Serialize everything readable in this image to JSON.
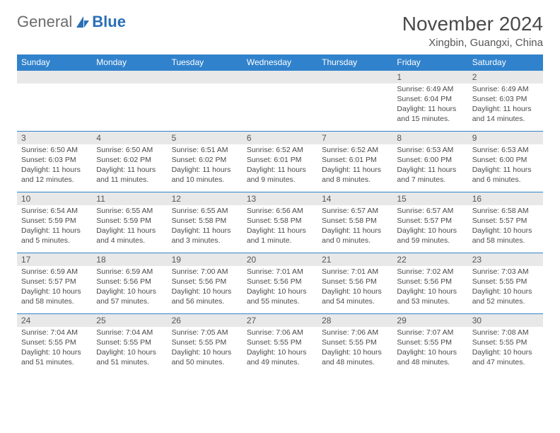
{
  "logo": {
    "text1": "General",
    "text2": "Blue"
  },
  "title": "November 2024",
  "location": "Xingbin, Guangxi, China",
  "colors": {
    "header_bg": "#3182cc",
    "header_fg": "#ffffff",
    "daynum_bg": "#e8e8e8",
    "border": "#3182cc",
    "logo_gray": "#6b6b6b",
    "logo_blue": "#2a6fb5"
  },
  "weekdays": [
    "Sunday",
    "Monday",
    "Tuesday",
    "Wednesday",
    "Thursday",
    "Friday",
    "Saturday"
  ],
  "weeks": [
    [
      null,
      null,
      null,
      null,
      null,
      {
        "d": "1",
        "sr": "6:49 AM",
        "ss": "6:04 PM",
        "dl": "11 hours and 15 minutes."
      },
      {
        "d": "2",
        "sr": "6:49 AM",
        "ss": "6:03 PM",
        "dl": "11 hours and 14 minutes."
      }
    ],
    [
      {
        "d": "3",
        "sr": "6:50 AM",
        "ss": "6:03 PM",
        "dl": "11 hours and 12 minutes."
      },
      {
        "d": "4",
        "sr": "6:50 AM",
        "ss": "6:02 PM",
        "dl": "11 hours and 11 minutes."
      },
      {
        "d": "5",
        "sr": "6:51 AM",
        "ss": "6:02 PM",
        "dl": "11 hours and 10 minutes."
      },
      {
        "d": "6",
        "sr": "6:52 AM",
        "ss": "6:01 PM",
        "dl": "11 hours and 9 minutes."
      },
      {
        "d": "7",
        "sr": "6:52 AM",
        "ss": "6:01 PM",
        "dl": "11 hours and 8 minutes."
      },
      {
        "d": "8",
        "sr": "6:53 AM",
        "ss": "6:00 PM",
        "dl": "11 hours and 7 minutes."
      },
      {
        "d": "9",
        "sr": "6:53 AM",
        "ss": "6:00 PM",
        "dl": "11 hours and 6 minutes."
      }
    ],
    [
      {
        "d": "10",
        "sr": "6:54 AM",
        "ss": "5:59 PM",
        "dl": "11 hours and 5 minutes."
      },
      {
        "d": "11",
        "sr": "6:55 AM",
        "ss": "5:59 PM",
        "dl": "11 hours and 4 minutes."
      },
      {
        "d": "12",
        "sr": "6:55 AM",
        "ss": "5:58 PM",
        "dl": "11 hours and 3 minutes."
      },
      {
        "d": "13",
        "sr": "6:56 AM",
        "ss": "5:58 PM",
        "dl": "11 hours and 1 minute."
      },
      {
        "d": "14",
        "sr": "6:57 AM",
        "ss": "5:58 PM",
        "dl": "11 hours and 0 minutes."
      },
      {
        "d": "15",
        "sr": "6:57 AM",
        "ss": "5:57 PM",
        "dl": "10 hours and 59 minutes."
      },
      {
        "d": "16",
        "sr": "6:58 AM",
        "ss": "5:57 PM",
        "dl": "10 hours and 58 minutes."
      }
    ],
    [
      {
        "d": "17",
        "sr": "6:59 AM",
        "ss": "5:57 PM",
        "dl": "10 hours and 58 minutes."
      },
      {
        "d": "18",
        "sr": "6:59 AM",
        "ss": "5:56 PM",
        "dl": "10 hours and 57 minutes."
      },
      {
        "d": "19",
        "sr": "7:00 AM",
        "ss": "5:56 PM",
        "dl": "10 hours and 56 minutes."
      },
      {
        "d": "20",
        "sr": "7:01 AM",
        "ss": "5:56 PM",
        "dl": "10 hours and 55 minutes."
      },
      {
        "d": "21",
        "sr": "7:01 AM",
        "ss": "5:56 PM",
        "dl": "10 hours and 54 minutes."
      },
      {
        "d": "22",
        "sr": "7:02 AM",
        "ss": "5:56 PM",
        "dl": "10 hours and 53 minutes."
      },
      {
        "d": "23",
        "sr": "7:03 AM",
        "ss": "5:55 PM",
        "dl": "10 hours and 52 minutes."
      }
    ],
    [
      {
        "d": "24",
        "sr": "7:04 AM",
        "ss": "5:55 PM",
        "dl": "10 hours and 51 minutes."
      },
      {
        "d": "25",
        "sr": "7:04 AM",
        "ss": "5:55 PM",
        "dl": "10 hours and 51 minutes."
      },
      {
        "d": "26",
        "sr": "7:05 AM",
        "ss": "5:55 PM",
        "dl": "10 hours and 50 minutes."
      },
      {
        "d": "27",
        "sr": "7:06 AM",
        "ss": "5:55 PM",
        "dl": "10 hours and 49 minutes."
      },
      {
        "d": "28",
        "sr": "7:06 AM",
        "ss": "5:55 PM",
        "dl": "10 hours and 48 minutes."
      },
      {
        "d": "29",
        "sr": "7:07 AM",
        "ss": "5:55 PM",
        "dl": "10 hours and 48 minutes."
      },
      {
        "d": "30",
        "sr": "7:08 AM",
        "ss": "5:55 PM",
        "dl": "10 hours and 47 minutes."
      }
    ]
  ],
  "labels": {
    "sunrise": "Sunrise:",
    "sunset": "Sunset:",
    "daylight": "Daylight:"
  }
}
